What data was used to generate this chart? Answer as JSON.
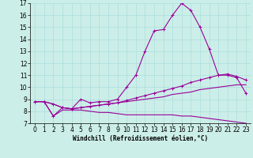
{
  "xlabel": "Windchill (Refroidissement éolien,°C)",
  "background_color": "#cceee8",
  "line_color": "#990099",
  "xlim": [
    -0.5,
    23.5
  ],
  "ylim": [
    7,
    17
  ],
  "xticks": [
    0,
    1,
    2,
    3,
    4,
    5,
    6,
    7,
    8,
    9,
    10,
    11,
    12,
    13,
    14,
    15,
    16,
    17,
    18,
    19,
    20,
    21,
    22,
    23
  ],
  "yticks": [
    7,
    8,
    9,
    10,
    11,
    12,
    13,
    14,
    15,
    16,
    17
  ],
  "grid_color": "#aadddd",
  "line_spike_x": [
    0,
    1,
    2,
    3,
    4,
    5,
    6,
    7,
    8,
    9,
    10,
    11,
    12,
    13,
    14,
    15,
    16,
    17,
    18,
    19,
    20,
    21,
    22,
    23
  ],
  "line_spike_y": [
    8.8,
    8.8,
    7.6,
    8.3,
    8.2,
    9.0,
    8.7,
    8.8,
    8.8,
    9.0,
    10.0,
    11.0,
    13.0,
    14.7,
    14.8,
    16.0,
    17.0,
    16.4,
    15.0,
    13.2,
    11.0,
    11.0,
    10.8,
    9.5
  ],
  "line_upper_x": [
    0,
    1,
    2,
    3,
    4,
    5,
    6,
    7,
    8,
    9,
    10,
    11,
    12,
    13,
    14,
    15,
    16,
    17,
    18,
    19,
    20,
    21,
    22,
    23
  ],
  "line_upper_y": [
    8.8,
    8.8,
    8.6,
    8.3,
    8.2,
    8.3,
    8.4,
    8.5,
    8.6,
    8.7,
    8.9,
    9.1,
    9.3,
    9.5,
    9.7,
    9.9,
    10.1,
    10.4,
    10.6,
    10.8,
    11.0,
    11.1,
    10.9,
    10.6
  ],
  "line_mid_x": [
    0,
    1,
    2,
    3,
    4,
    5,
    6,
    7,
    8,
    9,
    10,
    11,
    12,
    13,
    14,
    15,
    16,
    17,
    18,
    19,
    20,
    21,
    22,
    23
  ],
  "line_mid_y": [
    8.8,
    8.8,
    8.6,
    8.3,
    8.2,
    8.3,
    8.4,
    8.5,
    8.6,
    8.7,
    8.8,
    8.9,
    9.0,
    9.1,
    9.2,
    9.4,
    9.5,
    9.6,
    9.8,
    9.9,
    10.0,
    10.1,
    10.2,
    10.2
  ],
  "line_lower_x": [
    0,
    1,
    2,
    3,
    4,
    5,
    6,
    7,
    8,
    9,
    10,
    11,
    12,
    13,
    14,
    15,
    16,
    17,
    18,
    19,
    20,
    21,
    22,
    23
  ],
  "line_lower_y": [
    8.8,
    8.8,
    7.6,
    8.1,
    8.1,
    8.1,
    8.0,
    7.9,
    7.9,
    7.8,
    7.7,
    7.7,
    7.7,
    7.7,
    7.7,
    7.7,
    7.6,
    7.6,
    7.5,
    7.4,
    7.3,
    7.2,
    7.1,
    7.0
  ],
  "markersize": 3,
  "linewidth": 0.8,
  "tick_labelsize": 5.5,
  "xlabel_fontsize": 5.5
}
